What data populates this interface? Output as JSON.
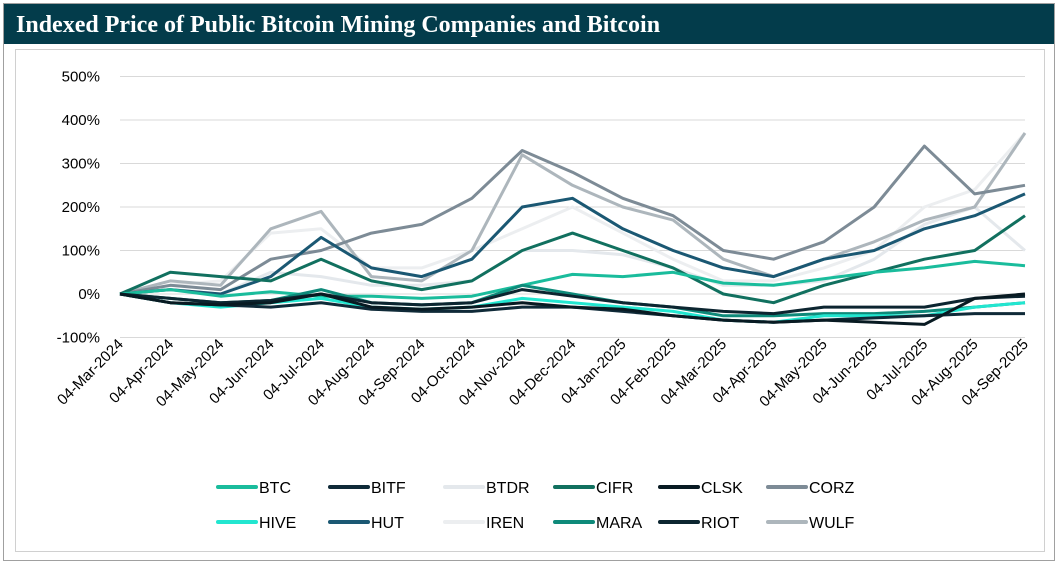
{
  "title": "Indexed Price of Public Bitcoin Mining Companies and Bitcoin",
  "chart_data": {
    "type": "line",
    "title": "Indexed Price of Public Bitcoin Mining Companies and Bitcoin",
    "xlabel": "",
    "ylabel": "",
    "ylim": [
      -100,
      500
    ],
    "yticks": [
      "500%",
      "400%",
      "300%",
      "200%",
      "100%",
      "0%",
      "-100%"
    ],
    "ytick_values": [
      500,
      400,
      300,
      200,
      100,
      0,
      -100
    ],
    "x": [
      "04-Mar-2024",
      "04-Apr-2024",
      "04-May-2024",
      "04-Jun-2024",
      "04-Jul-2024",
      "04-Aug-2024",
      "04-Sep-2024",
      "04-Oct-2024",
      "04-Nov-2024",
      "04-Dec-2024",
      "04-Jan-2025",
      "04-Feb-2025",
      "04-Mar-2025",
      "04-Apr-2025",
      "04-May-2025",
      "04-Jun-2025",
      "04-Jul-2025",
      "04-Aug-2025",
      "04-Sep-2025"
    ],
    "grid": "horizontal",
    "legend": "bottom",
    "series": [
      {
        "name": "BTC",
        "color": "#1abc9c",
        "values": [
          0,
          10,
          -5,
          5,
          -5,
          -5,
          -10,
          -5,
          20,
          45,
          40,
          50,
          25,
          20,
          35,
          50,
          60,
          75,
          65
        ]
      },
      {
        "name": "BITF",
        "color": "#0f2a38",
        "values": [
          0,
          -20,
          -25,
          -30,
          -20,
          -35,
          -40,
          -40,
          -30,
          -30,
          -40,
          -50,
          -60,
          -65,
          -60,
          -55,
          -50,
          -45,
          -45
        ]
      },
      {
        "name": "BTDR",
        "color": "#e4e8ec",
        "values": [
          0,
          10,
          0,
          50,
          40,
          20,
          20,
          30,
          100,
          100,
          90,
          60,
          20,
          20,
          30,
          80,
          160,
          200,
          100
        ]
      },
      {
        "name": "CIFR",
        "color": "#11705f",
        "values": [
          0,
          50,
          40,
          30,
          80,
          30,
          10,
          30,
          100,
          140,
          100,
          60,
          0,
          -20,
          20,
          50,
          80,
          100,
          180
        ]
      },
      {
        "name": "CLSK",
        "color": "#081a22",
        "values": [
          0,
          -20,
          -25,
          -20,
          0,
          -30,
          -35,
          -30,
          -20,
          -30,
          -35,
          -50,
          -60,
          -65,
          -60,
          -65,
          -70,
          -10,
          0
        ]
      },
      {
        "name": "CORZ",
        "color": "#7d8b96",
        "values": [
          0,
          20,
          10,
          80,
          100,
          140,
          160,
          220,
          330,
          280,
          220,
          180,
          100,
          80,
          120,
          200,
          340,
          230,
          250
        ]
      },
      {
        "name": "HIVE",
        "color": "#22e6d0",
        "values": [
          0,
          -20,
          -30,
          -20,
          -10,
          -30,
          -35,
          -30,
          -10,
          -20,
          -30,
          -40,
          -60,
          -65,
          -50,
          -50,
          -50,
          -30,
          -20
        ]
      },
      {
        "name": "HUT",
        "color": "#1b5873",
        "values": [
          0,
          10,
          0,
          40,
          130,
          60,
          40,
          80,
          200,
          220,
          150,
          100,
          60,
          40,
          80,
          100,
          150,
          180,
          230
        ]
      },
      {
        "name": "IREN",
        "color": "#eceef0",
        "values": [
          0,
          20,
          30,
          140,
          150,
          60,
          60,
          100,
          150,
          200,
          140,
          80,
          30,
          30,
          60,
          100,
          200,
          240,
          370
        ]
      },
      {
        "name": "MARA",
        "color": "#0e8a7a",
        "values": [
          0,
          -10,
          -20,
          -15,
          10,
          -20,
          -25,
          -20,
          20,
          0,
          -20,
          -30,
          -50,
          -50,
          -45,
          -45,
          -40,
          -30,
          -20
        ]
      },
      {
        "name": "RIOT",
        "color": "#0c2530",
        "values": [
          0,
          -10,
          -20,
          -15,
          0,
          -20,
          -25,
          -20,
          10,
          -5,
          -20,
          -30,
          -40,
          -45,
          -30,
          -30,
          -30,
          -10,
          -5
        ]
      },
      {
        "name": "WULF",
        "color": "#adb6bc",
        "values": [
          0,
          30,
          20,
          150,
          190,
          40,
          30,
          100,
          320,
          250,
          200,
          170,
          80,
          40,
          80,
          120,
          170,
          200,
          370
        ]
      }
    ]
  }
}
